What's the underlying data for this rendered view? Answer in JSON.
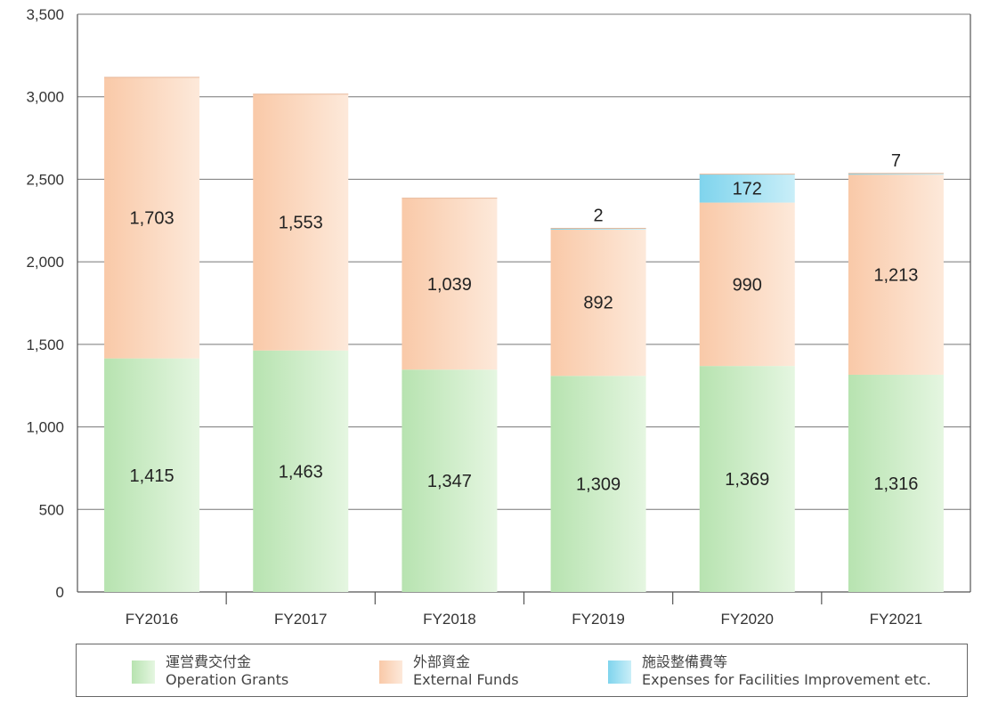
{
  "chart_data": {
    "type": "bar",
    "stacked": true,
    "categories": [
      "FY2016",
      "FY2017",
      "FY2018",
      "FY2019",
      "FY2020",
      "FY2021"
    ],
    "series": [
      {
        "name": "運営費交付金 Operation Grants",
        "name_ja": "運営費交付金",
        "name_en": "Operation Grants",
        "color": "#c8ebc2",
        "values": [
          1415,
          1463,
          1347,
          1309,
          1369,
          1316
        ]
      },
      {
        "name": "外部資金 External Funds",
        "name_ja": "外部資金",
        "name_en": "External Funds",
        "color": "#fbd8bf",
        "values": [
          1703,
          1553,
          1039,
          892,
          990,
          1213
        ]
      },
      {
        "name": "施設整備費等 Expenses for Facilities Improvement etc.",
        "name_ja": "施設整備費等",
        "name_en": "Expenses for Facilities Improvement etc.",
        "color": "#9edff0",
        "values": [
          null,
          null,
          null,
          2,
          172,
          7
        ]
      }
    ],
    "data_labels": [
      [
        "1,415",
        "1,463",
        "1,347",
        "1,309",
        "1,369",
        "1,316"
      ],
      [
        "1,703",
        "1,553",
        "1,039",
        "892",
        "990",
        "1,213"
      ],
      [
        "",
        "",
        "",
        "2",
        "172",
        "7"
      ]
    ],
    "yticks": [
      "0",
      "500",
      "1,000",
      "1,500",
      "2,000",
      "2,500",
      "3,000",
      "3,500"
    ],
    "ylim": [
      0,
      3500
    ],
    "grid": true,
    "legend_position": "bottom",
    "title": "",
    "xlabel": "",
    "ylabel": ""
  }
}
